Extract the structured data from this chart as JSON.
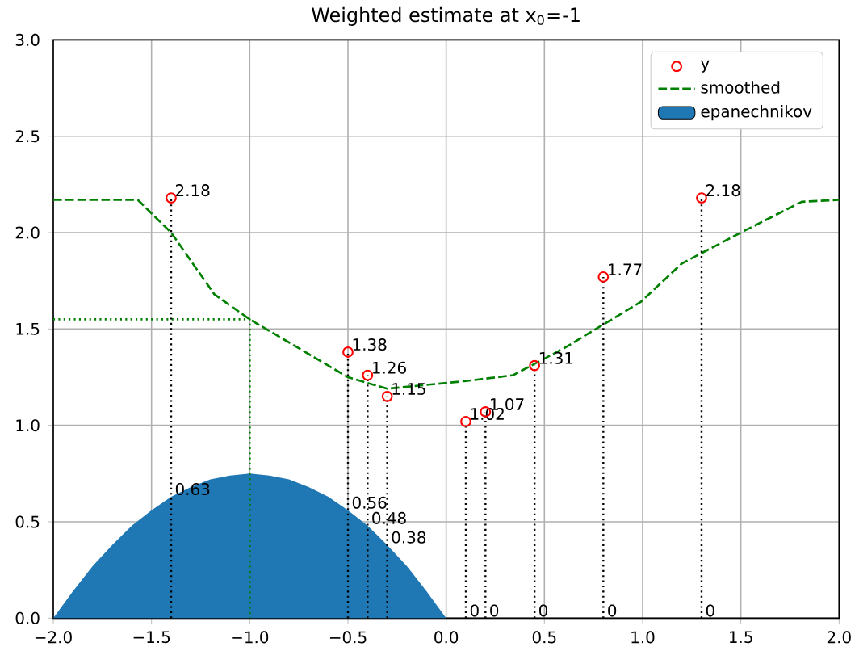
{
  "chart_data": {
    "type": "line",
    "title": "Weighted estimate at x$_{0}$=-1",
    "xlim": [
      -2,
      2
    ],
    "ylim": [
      0,
      3
    ],
    "xticks": [
      {
        "value": -2,
        "label": "−2.0"
      },
      {
        "value": -1.5,
        "label": "−1.5"
      },
      {
        "value": -1,
        "label": "−1.0"
      },
      {
        "value": -0.5,
        "label": "−0.5"
      },
      {
        "value": 0,
        "label": "0.0"
      },
      {
        "value": 0.5,
        "label": "0.5"
      },
      {
        "value": 1,
        "label": "1.0"
      },
      {
        "value": 1.5,
        "label": "1.5"
      },
      {
        "value": 2,
        "label": "2.0"
      }
    ],
    "yticks": [
      {
        "value": 0,
        "label": "0.0"
      },
      {
        "value": 0.5,
        "label": "0.5"
      },
      {
        "value": 1,
        "label": "1.0"
      },
      {
        "value": 1.5,
        "label": "1.5"
      },
      {
        "value": 2,
        "label": "2.0"
      },
      {
        "value": 2.5,
        "label": "2.5"
      },
      {
        "value": 3,
        "label": "3.0"
      }
    ],
    "grid": true,
    "legend": "top right",
    "series": [
      {
        "name": "y",
        "type": "lollipop",
        "color": "#ff0000",
        "marker": "circle",
        "line_style": "dotted",
        "x": [
          -1.4,
          -0.5,
          -0.4,
          -0.3,
          0.1,
          0.2,
          0.45,
          0.8,
          1.3
        ],
        "values": [
          2.18,
          1.38,
          1.26,
          1.15,
          1.02,
          1.07,
          1.31,
          1.77,
          2.18
        ],
        "value_labels": [
          "2.18",
          "1.38",
          "1.26",
          "1.15",
          "1.02",
          "1.07",
          "1.31",
          "1.77",
          "2.18"
        ]
      },
      {
        "name": "smoothed",
        "color": "#008000",
        "line_style": "dashed",
        "x": [
          -2,
          -1.57,
          -1.4,
          -1.18,
          -1,
          -0.5,
          -0.3,
          0.1,
          0.34,
          0.6,
          0.99,
          1.2,
          1.5,
          1.81,
          2
        ],
        "values": [
          2.17,
          2.17,
          2.0,
          1.68,
          1.55,
          1.25,
          1.19,
          1.23,
          1.26,
          1.4,
          1.64,
          1.84,
          2.0,
          2.16,
          2.17
        ]
      },
      {
        "name": "epanechnikov",
        "type": "area",
        "color": "#1f77b4",
        "x": [
          -2,
          -1.9,
          -1.8,
          -1.7,
          -1.6,
          -1.5,
          -1.4,
          -1.3,
          -1.2,
          -1.1,
          -1,
          -0.9,
          -0.8,
          -0.7,
          -0.6,
          -0.5,
          -0.4,
          -0.3,
          -0.2,
          -0.1,
          0,
          0.1,
          0.2,
          0.45,
          0.8,
          1.3,
          2
        ],
        "values": [
          0,
          0.14,
          0.27,
          0.38,
          0.48,
          0.56,
          0.63,
          0.68,
          0.72,
          0.74,
          0.75,
          0.74,
          0.72,
          0.68,
          0.63,
          0.56,
          0.48,
          0.38,
          0.27,
          0.14,
          0,
          0,
          0,
          0,
          0,
          0,
          0
        ]
      },
      {
        "color": "#008000",
        "line_style": "dotted",
        "x": [
          -2,
          -1,
          -1
        ],
        "values": [
          1.55,
          1.55,
          0
        ]
      }
    ],
    "annotations": [
      {
        "text": "0.63",
        "x": -1.4,
        "y": 0.63
      },
      {
        "text": "0.56",
        "x": -0.5,
        "y": 0.56
      },
      {
        "text": "0.48",
        "x": -0.4,
        "y": 0.48
      },
      {
        "text": "0.38",
        "x": -0.3,
        "y": 0.38
      },
      {
        "text": "0",
        "x": 0.1,
        "y": 0
      },
      {
        "text": "0",
        "x": 0.2,
        "y": 0
      },
      {
        "text": "0",
        "x": 0.45,
        "y": 0
      },
      {
        "text": "0",
        "x": 0.8,
        "y": 0
      },
      {
        "text": "0",
        "x": 1.3,
        "y": 0
      }
    ]
  }
}
